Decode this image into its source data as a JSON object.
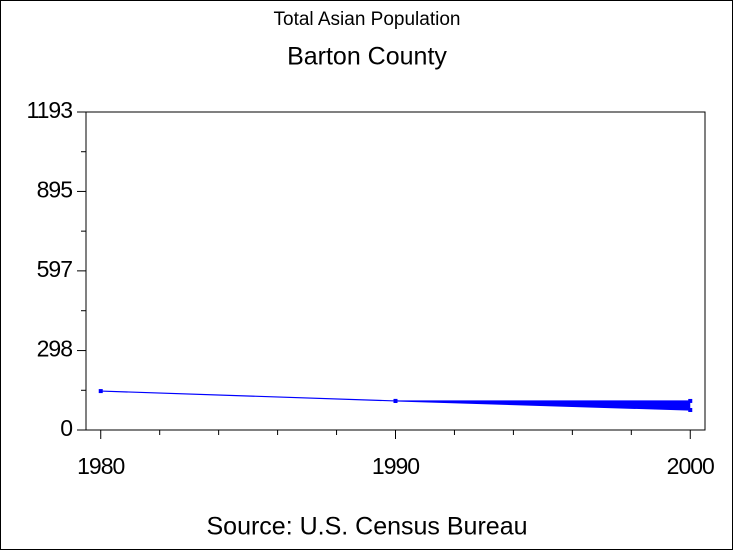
{
  "chart_data": {
    "type": "line",
    "title": "Total Asian Population",
    "subtitle": "Barton County",
    "footnote": "Source: U.S. Census Bureau",
    "x": [
      1980,
      1990,
      2000
    ],
    "series": [
      {
        "color": "#0000ff",
        "values": [
          146,
          109,
          109
        ]
      },
      {
        "color": "#0000ff",
        "values": [
          null,
          109,
          75
        ]
      }
    ],
    "fill_between": true,
    "xlim": [
      1979.5,
      2000.5
    ],
    "xticks": [
      1980,
      1990,
      2000
    ],
    "ylim": [
      0,
      1193
    ],
    "yticks": [
      0,
      298,
      597,
      895,
      1193
    ]
  }
}
